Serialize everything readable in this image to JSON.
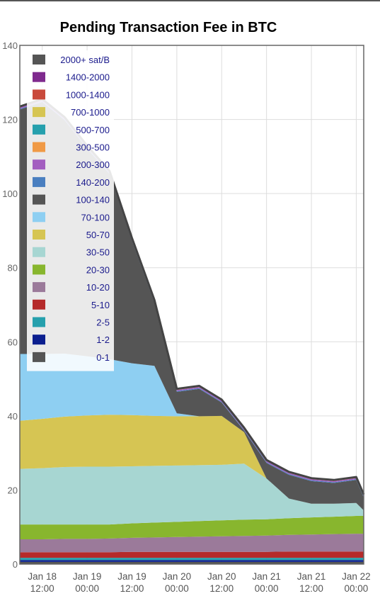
{
  "chart_data": {
    "type": "area",
    "title": "Pending Transaction Fee in BTC",
    "xlabel": "",
    "ylabel": "",
    "ylim": [
      0,
      140
    ],
    "yticks": [
      0,
      20,
      40,
      60,
      80,
      100,
      120,
      140
    ],
    "x_range": [
      "Jan 18 06:00",
      "Jan 22 02:00"
    ],
    "xticks": [
      {
        "at": "Jan 18 12:00",
        "label1": "Jan 18",
        "label2": "12:00"
      },
      {
        "at": "Jan 19 00:00",
        "label1": "Jan 19",
        "label2": "00:00"
      },
      {
        "at": "Jan 19 12:00",
        "label1": "Jan 19",
        "label2": "12:00"
      },
      {
        "at": "Jan 20 00:00",
        "label1": "Jan 20",
        "label2": "00:00"
      },
      {
        "at": "Jan 20 12:00",
        "label1": "Jan 20",
        "label2": "12:00"
      },
      {
        "at": "Jan 21 00:00",
        "label1": "Jan 21",
        "label2": "00:00"
      },
      {
        "at": "Jan 21 12:00",
        "label1": "Jan 21",
        "label2": "12:00"
      },
      {
        "at": "Jan 22 00:00",
        "label1": "Jan 22",
        "label2": "00:00"
      }
    ],
    "grid": true,
    "legend_placement": "top-left",
    "x": [
      "Jan 18 06:00",
      "Jan 18 12:00",
      "Jan 18 18:00",
      "Jan 19 00:00",
      "Jan 19 06:00",
      "Jan 19 12:00",
      "Jan 19 18:00",
      "Jan 20 00:00",
      "Jan 20 06:00",
      "Jan 20 12:00",
      "Jan 20 18:00",
      "Jan 21 00:00",
      "Jan 21 06:00",
      "Jan 21 12:00",
      "Jan 21 18:00",
      "Jan 22 00:00",
      "Jan 22 02:00"
    ],
    "series": [
      {
        "name": "0-1",
        "color": "#555555",
        "values": [
          0.6,
          0.6,
          0.6,
          0.6,
          0.6,
          0.6,
          0.6,
          0.6,
          0.6,
          0.6,
          0.6,
          0.6,
          0.6,
          0.6,
          0.6,
          0.6,
          0.6
        ]
      },
      {
        "name": "1-2",
        "color": "#0b1f8f",
        "values": [
          0.5,
          0.5,
          0.5,
          0.5,
          0.5,
          0.5,
          0.5,
          0.5,
          0.5,
          0.5,
          0.5,
          0.5,
          0.5,
          0.5,
          0.5,
          0.5,
          0.5
        ]
      },
      {
        "name": "2-5",
        "color": "#26a0ad",
        "values": [
          0.6,
          0.6,
          0.6,
          0.6,
          0.6,
          0.6,
          0.6,
          0.6,
          0.6,
          0.6,
          0.6,
          0.6,
          0.6,
          0.6,
          0.6,
          0.6,
          0.6
        ]
      },
      {
        "name": "5-10",
        "color": "#b52a2a",
        "values": [
          1.5,
          1.5,
          1.5,
          1.5,
          1.5,
          1.6,
          1.6,
          1.6,
          1.6,
          1.6,
          1.6,
          1.6,
          1.7,
          1.7,
          1.7,
          1.7,
          1.7
        ]
      },
      {
        "name": "10-20",
        "color": "#9b7a9a",
        "values": [
          3.5,
          3.5,
          3.6,
          3.6,
          3.7,
          3.8,
          3.9,
          4,
          4.1,
          4.2,
          4.3,
          4.4,
          4.5,
          4.6,
          4.7,
          4.8,
          4.8
        ]
      },
      {
        "name": "20-30",
        "color": "#88b62e",
        "values": [
          4,
          4,
          3.9,
          3.9,
          3.8,
          3.9,
          4,
          4.1,
          4.2,
          4.3,
          4.4,
          4.4,
          4.5,
          4.6,
          4.7,
          4.8,
          4.8
        ]
      },
      {
        "name": "30-50",
        "color": "#a7d6d2",
        "values": [
          15,
          15.2,
          15.5,
          15.6,
          15.6,
          15.4,
          15.3,
          15.2,
          15.1,
          15,
          15.1,
          11,
          5.3,
          3.7,
          3.5,
          3.5,
          1.5
        ]
      },
      {
        "name": "50-70",
        "color": "#d6c553",
        "values": [
          13,
          13.3,
          13.6,
          13.8,
          14,
          13.8,
          13.5,
          13.3,
          13.2,
          13.2,
          8.5,
          0,
          0,
          0,
          0,
          0,
          0
        ]
      },
      {
        "name": "70-100",
        "color": "#8ecff2",
        "values": [
          18,
          17.5,
          17,
          16,
          15,
          14,
          13.5,
          0.8,
          0,
          0,
          0,
          0,
          0,
          0,
          0,
          0,
          0
        ]
      },
      {
        "name": "100-140",
        "color": "#555555",
        "values": [
          66,
          68,
          63,
          56,
          50,
          33,
          17,
          5.8,
          7.4,
          3.6,
          0.4,
          4.2,
          6.4,
          6.1,
          5.6,
          6.2,
          3.5
        ]
      },
      {
        "name": "140-200",
        "color": "#4a7fc0",
        "values": [
          0.2,
          0.2,
          0.2,
          0.2,
          0.2,
          0.2,
          0.2,
          0.2,
          0.2,
          0.2,
          0.2,
          0.2,
          0.2,
          0.2,
          0.2,
          0.2,
          0.2
        ]
      },
      {
        "name": "200-300",
        "color": "#a35ec0",
        "values": [
          0.3,
          0.3,
          0.3,
          0.3,
          0.3,
          0.3,
          0.3,
          0.3,
          0.3,
          0.3,
          0.3,
          0.3,
          0.3,
          0.3,
          0.3,
          0.3,
          0.3
        ]
      },
      {
        "name": "300-500",
        "color": "#f09a46",
        "values": [
          0.3,
          0.3,
          0.3,
          0.3,
          0.3,
          0.3,
          0.3,
          0.3,
          0.3,
          0.3,
          0.3,
          0.3,
          0.3,
          0.3,
          0.3,
          0.3,
          0.3
        ]
      },
      {
        "name": "500-700",
        "color": "#26a0ad",
        "values": [
          0,
          0,
          0,
          0,
          0,
          0,
          0,
          0,
          0,
          0,
          0,
          0,
          0,
          0,
          0,
          0,
          0
        ]
      },
      {
        "name": "700-1000",
        "color": "#d6c553",
        "values": [
          0,
          0,
          0,
          0,
          0,
          0,
          0,
          0,
          0,
          0,
          0,
          0,
          0,
          0,
          0,
          0,
          0
        ]
      },
      {
        "name": "1000-1400",
        "color": "#c94a3c",
        "values": [
          0,
          0,
          0,
          0,
          0,
          0,
          0,
          0,
          0,
          0,
          0,
          0,
          0,
          0,
          0,
          0,
          0
        ]
      },
      {
        "name": "1400-2000",
        "color": "#7f2a8e",
        "values": [
          0,
          0,
          0,
          0,
          0,
          0,
          0,
          0,
          0,
          0,
          0,
          0,
          0,
          0,
          0,
          0,
          0
        ]
      },
      {
        "name": "2000+ sat/B",
        "color": "#555555",
        "values": [
          0,
          0,
          0,
          0,
          0,
          0,
          0,
          0,
          0,
          0,
          0,
          0,
          0,
          0,
          0,
          0,
          0
        ]
      }
    ]
  }
}
